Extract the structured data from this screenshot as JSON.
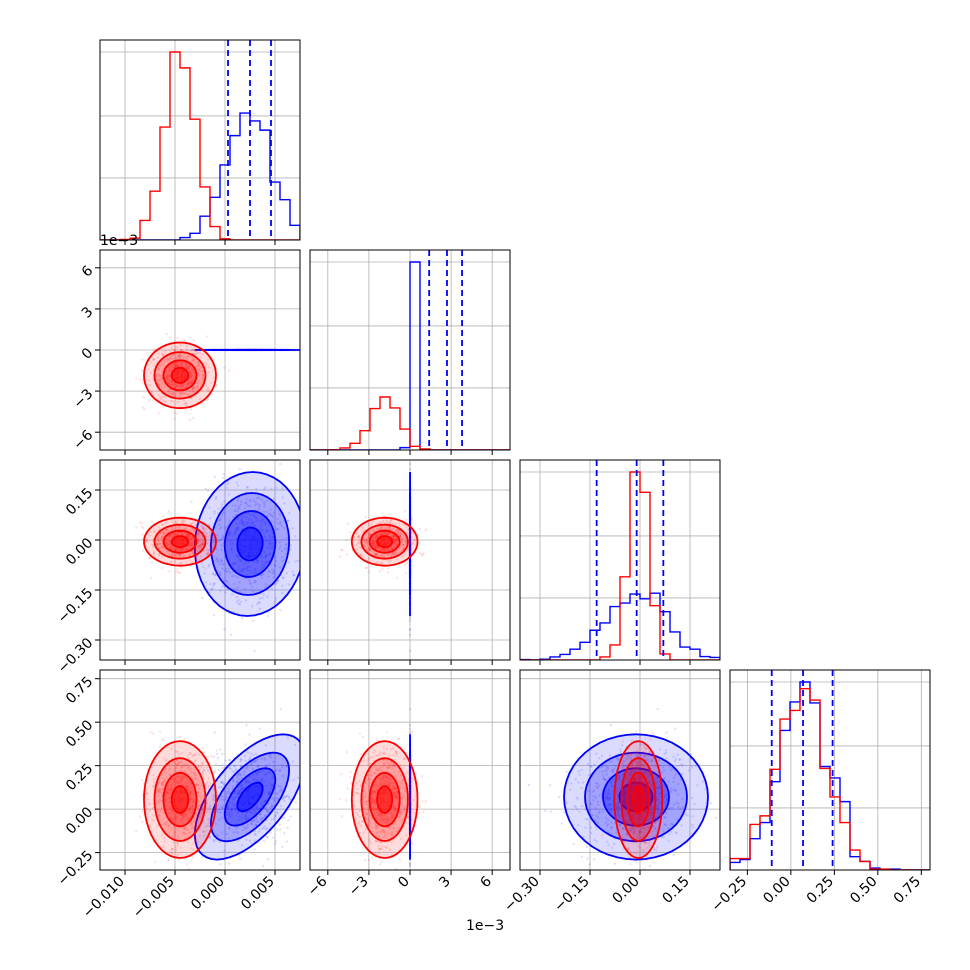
{
  "chart_data": {
    "type": "corner",
    "title": "",
    "colors": {
      "series_a": "#0000ff",
      "series_b": "#ff0000",
      "grid": "#b0b0b0"
    },
    "grid": true,
    "series": [
      {
        "color": "#0000ff",
        "means": [
          0.0025,
          0.0027,
          -0.012,
          0.07
        ],
        "sds": [
          0.0023,
          0.0012,
          0.09,
          0.15
        ],
        "corr": {
          "1-0": -0.35,
          "2-0": 0.05,
          "2-1": 0.55,
          "3-0": 0.6,
          "3-1": 0.05,
          "3-2": 0.0
        }
      },
      {
        "color": "#ff0000",
        "means": [
          -0.0045,
          -1.85,
          -0.005,
          0.055
        ],
        "sds": [
          0.0015,
          1.0,
          0.03,
          0.14
        ],
        "corr": {
          "1-0": 0.0,
          "2-0": 0.0,
          "2-1": 0.0,
          "3-0": 0.0,
          "3-1": 0.0,
          "3-2": 0.0
        }
      }
    ],
    "quantile_lines": {
      "color": "#0000ff",
      "values": [
        [
          0.0003,
          0.0025,
          0.0046
        ],
        [
          1.4,
          2.7,
          3.8
        ],
        [
          -0.13,
          -0.01,
          0.07
        ],
        [
          -0.11,
          0.07,
          0.24
        ]
      ]
    },
    "ranges": [
      [
        -0.0125,
        0.0075
      ],
      [
        -7.3,
        7.3
      ],
      [
        -0.36,
        0.24
      ],
      [
        -0.35,
        0.8
      ]
    ],
    "params": [
      {
        "ticks": [
          -0.01,
          -0.005,
          0.0,
          0.005
        ],
        "labels": [
          "−0.010",
          "−0.005",
          "0.000",
          "0.005"
        ]
      },
      {
        "ticks": [
          -6,
          -3,
          0,
          3,
          6
        ],
        "labels": [
          "−6",
          "−3",
          "0",
          "3",
          "6"
        ]
      },
      {
        "ticks": [
          -0.3,
          -0.15,
          0.0,
          0.15
        ],
        "labels": [
          "−0.30",
          "−0.15",
          "0.00",
          "0.15"
        ]
      },
      {
        "ticks": [
          -0.25,
          0.0,
          0.25,
          0.5,
          0.75
        ],
        "labels": [
          "−0.25",
          "0.00",
          "0.25",
          "0.50",
          "0.75"
        ]
      }
    ],
    "scale_offset_labels": {
      "top_left": "1e−3",
      "bottom": "1e−3"
    }
  }
}
